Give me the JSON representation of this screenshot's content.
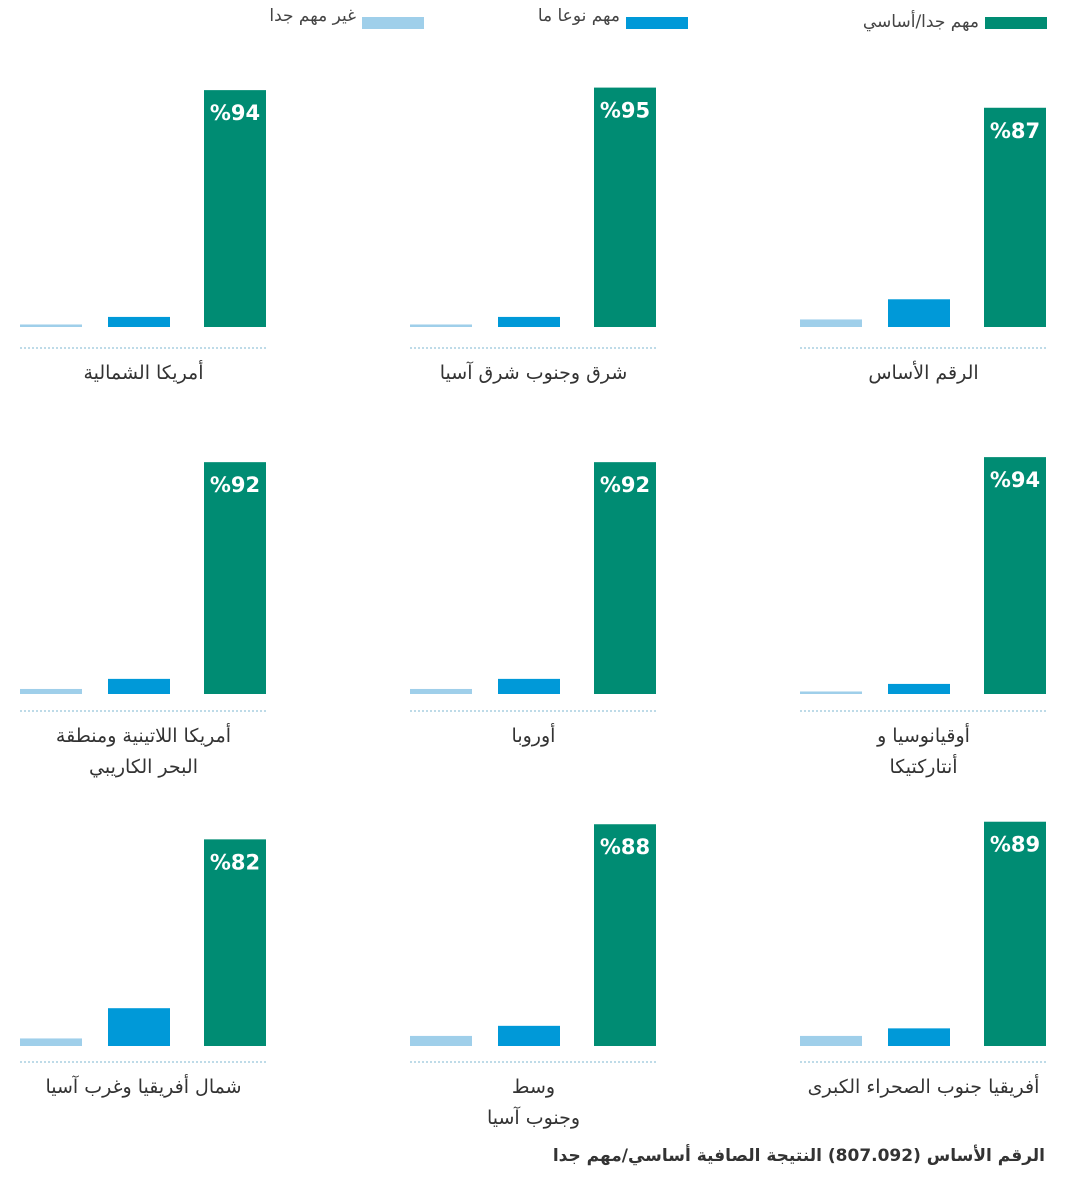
{
  "chart_data": {
    "type": "bar",
    "categories": [
      "الرقم الأساس",
      "شرق وجنوب شرق آسيا",
      "أمريكا الشمالية",
      "أوقيانوسيا و\nأنتاركتيكا",
      "أوروبا",
      "أمريكا اللاتينية ومنطقة\nالبحر الكاريبي",
      "أفريقيا جنوب الصحراء الكبرى",
      "وسط\nوجنوب آسيا",
      "شمال أفريقيا وغرب آسيا"
    ],
    "series": [
      {
        "name": "غير مهم جدا",
        "color": "#9fcfea",
        "values": [
          3,
          1,
          1,
          1,
          2,
          2,
          4,
          4,
          3
        ]
      },
      {
        "name": "مهم نوعا ما",
        "color": "#0099d8",
        "values": [
          11,
          4,
          4,
          4,
          6,
          6,
          7,
          8,
          15
        ]
      },
      {
        "name": "مهم جدا/أساسي",
        "color": "#008c73",
        "values": [
          87,
          95,
          94,
          94,
          92,
          92,
          89,
          88,
          82
        ],
        "value_labels": [
          "%87",
          "%95",
          "%94",
          "%94",
          "%92",
          "%92",
          "%89",
          "%88",
          "%82"
        ]
      }
    ],
    "ylim": [
      0,
      100
    ],
    "footnote": "الرقم الأساس (807.092) النتيجة الصافية أساسي/مهم جدا"
  }
}
